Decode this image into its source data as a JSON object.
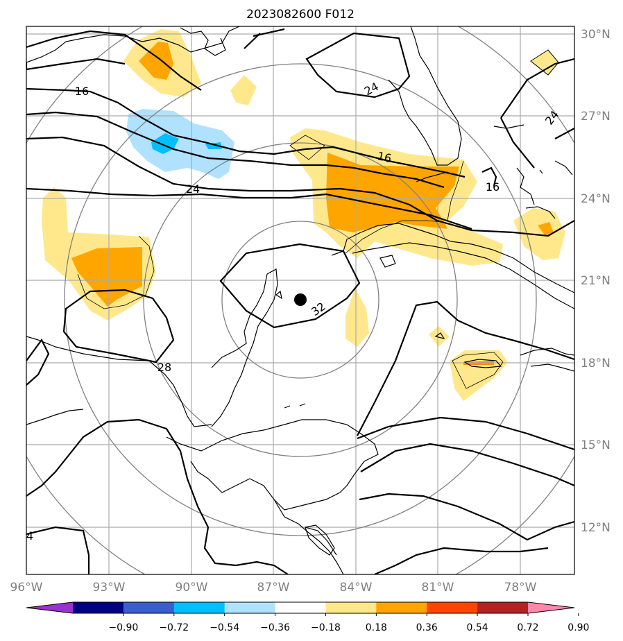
{
  "title": "2023082600 F012",
  "map": {
    "lon_range": [
      -96,
      -76
    ],
    "lat_range": [
      10.5,
      30.5
    ],
    "lon_ticks": [
      "96°W",
      "93°W",
      "90°W",
      "87°W",
      "84°W",
      "81°W",
      "78°W"
    ],
    "lat_ticks": [
      "30°N",
      "27°N",
      "24°N",
      "21°N",
      "18°N",
      "15°N",
      "12°N"
    ],
    "storm_center": {
      "lon": -85.7,
      "lat": 20.3
    },
    "contour_labels": [
      {
        "text": "16",
        "lon": -94.0,
        "lat": 26.4
      },
      {
        "text": "24",
        "lon": -89.8,
        "lat": 24.4
      },
      {
        "text": "24",
        "lon": -82.6,
        "lat": 26.5
      },
      {
        "text": "16",
        "lon": -83.2,
        "lat": 25.5
      },
      {
        "text": "16",
        "lon": -79.5,
        "lat": 24.4
      },
      {
        "text": "24",
        "lon": -77.5,
        "lat": 27.0
      },
      {
        "text": "32",
        "lon": -84.5,
        "lat": 19.9
      },
      {
        "text": "28",
        "lon": -89.0,
        "lat": 18.3
      },
      {
        "text": "4",
        "lon": -95.9,
        "lat": 12.2
      }
    ]
  },
  "colorbar": {
    "colors": [
      "#9933cc",
      "#000080",
      "#3a5fcd",
      "#00bfff",
      "#b0e2ff",
      "#ffffff",
      "#ffe88c",
      "#ffa500",
      "#ff4500",
      "#b22222",
      "#ff88aa"
    ],
    "labels": [
      "−0.90",
      "−0.72",
      "−0.54",
      "−0.36",
      "−0.18",
      "0.18",
      "0.36",
      "0.54",
      "0.72",
      "0.90"
    ]
  },
  "colors": {
    "light_yellow": "#ffe88c",
    "orange": "#ffa500",
    "dark_orange": "#ff4500",
    "light_blue": "#b0e2ff",
    "blue": "#00bfff",
    "grid": "#aaaaaa",
    "range_ring": "#808080"
  }
}
